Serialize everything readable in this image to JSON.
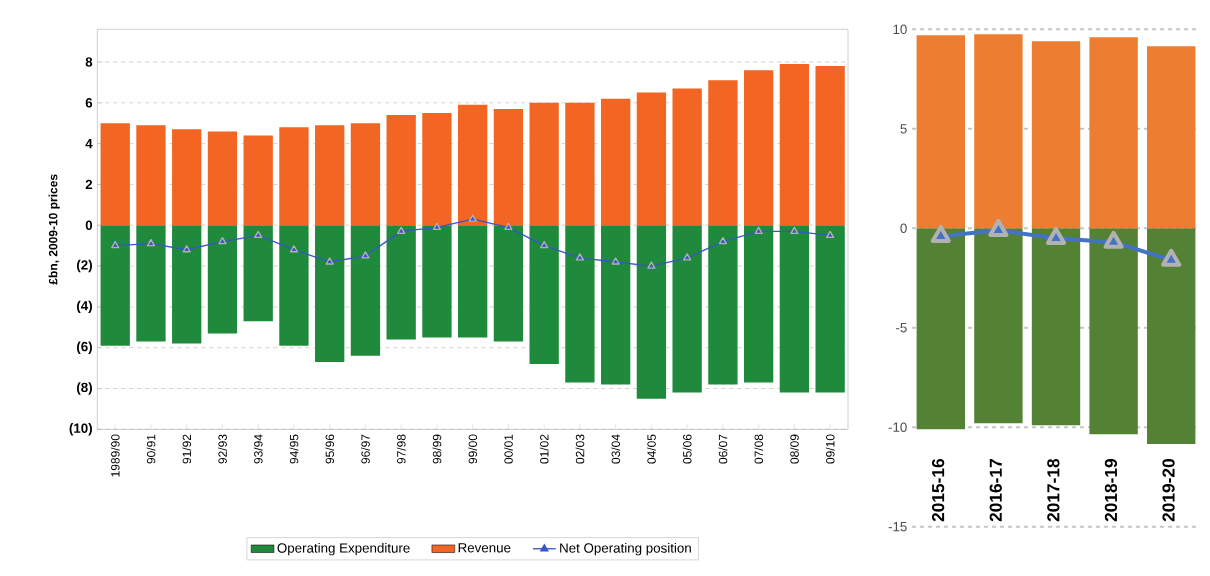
{
  "chart_data": [
    {
      "type": "bar",
      "ylabel": "£bn, 2009-10 prices",
      "categories": [
        "1989/90",
        "90/91",
        "91/92",
        "92/93",
        "93/94",
        "94/95",
        "95/96",
        "96/97",
        "97/98",
        "98/99",
        "99/00",
        "00/01",
        "01/02",
        "02/03",
        "03/04",
        "04/05",
        "05/06",
        "06/07",
        "07/08",
        "08/09",
        "09/10"
      ],
      "series": [
        {
          "name": "Operating Expenditure",
          "color": "#1f8a3c",
          "values": [
            -5.9,
            -5.7,
            -5.8,
            -5.3,
            -4.7,
            -5.9,
            -6.7,
            -6.4,
            -5.6,
            -5.5,
            -5.5,
            -5.7,
            -6.8,
            -7.7,
            -7.8,
            -8.5,
            -8.2,
            -7.8,
            -7.7,
            -8.2,
            -8.2
          ]
        },
        {
          "name": "Revenue",
          "color": "#f26522",
          "values": [
            5.0,
            4.9,
            4.7,
            4.6,
            4.4,
            4.8,
            4.9,
            5.0,
            5.4,
            5.5,
            5.9,
            5.7,
            6.0,
            6.0,
            6.2,
            6.5,
            6.7,
            7.1,
            7.6,
            7.9,
            7.8
          ]
        },
        {
          "name": "Net Operating position",
          "type": "line",
          "marker": "triangle",
          "color": "#3a55c8",
          "values": [
            -1.0,
            -0.9,
            -1.2,
            -0.8,
            -0.5,
            -1.2,
            -1.8,
            -1.5,
            -0.3,
            -0.1,
            0.3,
            -0.1,
            -1.0,
            -1.6,
            -1.8,
            -2.0,
            -1.6,
            -0.8,
            -0.3,
            -0.3,
            -0.5
          ]
        }
      ],
      "stacked": true,
      "ylim": [
        -10,
        9.6
      ],
      "yticks": [
        {
          "value": -10,
          "label": "(10)"
        },
        {
          "value": -8,
          "label": "(8)"
        },
        {
          "value": -6,
          "label": "(6)"
        },
        {
          "value": -4,
          "label": "(4)"
        },
        {
          "value": -2,
          "label": "(2)"
        },
        0,
        2,
        4,
        6,
        8
      ],
      "grid": "y",
      "legend": "bottom"
    },
    {
      "type": "bar",
      "categories": [
        "2015-16",
        "2016-17",
        "2017-18",
        "2018-19",
        "2019-20"
      ],
      "series": [
        {
          "color": "#548235",
          "values": [
            -10.1,
            -9.8,
            -9.9,
            -10.35,
            -10.85
          ]
        },
        {
          "color": "#ed7d31",
          "values": [
            9.7,
            9.75,
            9.4,
            9.6,
            9.15
          ]
        },
        {
          "type": "line",
          "marker": "triangle",
          "color": "#4472c4",
          "values": [
            -0.4,
            -0.1,
            -0.5,
            -0.7,
            -1.6
          ]
        }
      ],
      "stacked": true,
      "ylim": [
        -15,
        10
      ],
      "yticks": [
        -15,
        -10,
        -5,
        0,
        5,
        10
      ],
      "grid": "y"
    }
  ]
}
